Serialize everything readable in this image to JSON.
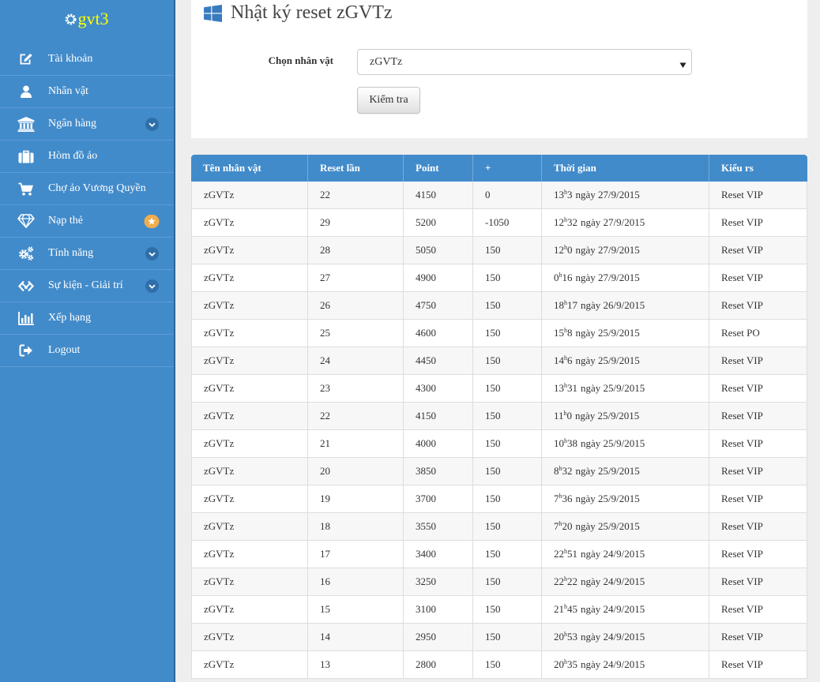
{
  "logo": {
    "text": "gvt3",
    "icon": "gear-icon"
  },
  "colors": {
    "sidebar": "#428bca",
    "logo_text": "#ffff00",
    "badge": "#f0ad4e",
    "table_header": "#428bca",
    "title_icon": "#3a7bbf"
  },
  "sidebar": {
    "items": [
      {
        "label": "Tài khoản",
        "icon": "edit-icon"
      },
      {
        "label": "Nhân vật",
        "icon": "user-icon"
      },
      {
        "label": "Ngân hàng",
        "icon": "bank-icon",
        "indicator": "chevron-circle-down-icon"
      },
      {
        "label": "Hòm đồ ảo",
        "icon": "briefcase-icon"
      },
      {
        "label": "Chợ ảo Vương Quyền",
        "icon": "shopping-cart-icon"
      },
      {
        "label": "Nạp thẻ",
        "icon": "diamond-icon",
        "indicator": "star-badge-icon"
      },
      {
        "label": "Tính năng",
        "icon": "cogs-icon",
        "indicator": "chevron-circle-down-icon"
      },
      {
        "label": "Sự kiện - Giải trí",
        "icon": "handshake-icon",
        "indicator": "chevron-circle-down-icon"
      },
      {
        "label": "Xếp hạng",
        "icon": "bar-chart-icon"
      },
      {
        "label": "Logout",
        "icon": "sign-out-icon"
      }
    ]
  },
  "page": {
    "title": "Nhật ký reset zGVTz",
    "icon": "windows-icon"
  },
  "form": {
    "character_label": "Chọn nhân vật",
    "selected_character": "zGVTz",
    "check_button": "Kiểm tra"
  },
  "table": {
    "columns": [
      "Tên nhân vật",
      "Reset lần",
      "Point",
      "+",
      "Thời gian",
      "Kiểu rs"
    ],
    "time_unit": "h",
    "rows": [
      {
        "name": "zGVTz",
        "reset": 22,
        "point": 4150,
        "delta": 0,
        "time": {
          "hour": "13",
          "minute": "3",
          "date": "ngày 27/9/2015"
        },
        "type": "Reset VIP"
      },
      {
        "name": "zGVTz",
        "reset": 29,
        "point": 5200,
        "delta": -1050,
        "time": {
          "hour": "12",
          "minute": "32",
          "date": "ngày 27/9/2015"
        },
        "type": "Reset VIP"
      },
      {
        "name": "zGVTz",
        "reset": 28,
        "point": 5050,
        "delta": 150,
        "time": {
          "hour": "12",
          "minute": "0",
          "date": "ngày 27/9/2015"
        },
        "type": "Reset VIP"
      },
      {
        "name": "zGVTz",
        "reset": 27,
        "point": 4900,
        "delta": 150,
        "time": {
          "hour": "0",
          "minute": "16",
          "date": "ngày 27/9/2015"
        },
        "type": "Reset VIP"
      },
      {
        "name": "zGVTz",
        "reset": 26,
        "point": 4750,
        "delta": 150,
        "time": {
          "hour": "18",
          "minute": "17",
          "date": "ngày 26/9/2015"
        },
        "type": "Reset VIP"
      },
      {
        "name": "zGVTz",
        "reset": 25,
        "point": 4600,
        "delta": 150,
        "time": {
          "hour": "15",
          "minute": "8",
          "date": "ngày 25/9/2015"
        },
        "type": "Reset PO"
      },
      {
        "name": "zGVTz",
        "reset": 24,
        "point": 4450,
        "delta": 150,
        "time": {
          "hour": "14",
          "minute": "6",
          "date": "ngày 25/9/2015"
        },
        "type": "Reset VIP"
      },
      {
        "name": "zGVTz",
        "reset": 23,
        "point": 4300,
        "delta": 150,
        "time": {
          "hour": "13",
          "minute": "31",
          "date": "ngày 25/9/2015"
        },
        "type": "Reset VIP"
      },
      {
        "name": "zGVTz",
        "reset": 22,
        "point": 4150,
        "delta": 150,
        "time": {
          "hour": "11",
          "minute": "0",
          "date": "ngày 25/9/2015"
        },
        "type": "Reset VIP"
      },
      {
        "name": "zGVTz",
        "reset": 21,
        "point": 4000,
        "delta": 150,
        "time": {
          "hour": "10",
          "minute": "38",
          "date": "ngày 25/9/2015"
        },
        "type": "Reset VIP"
      },
      {
        "name": "zGVTz",
        "reset": 20,
        "point": 3850,
        "delta": 150,
        "time": {
          "hour": "8",
          "minute": "32",
          "date": "ngày 25/9/2015"
        },
        "type": "Reset VIP"
      },
      {
        "name": "zGVTz",
        "reset": 19,
        "point": 3700,
        "delta": 150,
        "time": {
          "hour": "7",
          "minute": "36",
          "date": "ngày 25/9/2015"
        },
        "type": "Reset VIP"
      },
      {
        "name": "zGVTz",
        "reset": 18,
        "point": 3550,
        "delta": 150,
        "time": {
          "hour": "7",
          "minute": "20",
          "date": "ngày 25/9/2015"
        },
        "type": "Reset VIP"
      },
      {
        "name": "zGVTz",
        "reset": 17,
        "point": 3400,
        "delta": 150,
        "time": {
          "hour": "22",
          "minute": "51",
          "date": "ngày 24/9/2015"
        },
        "type": "Reset VIP"
      },
      {
        "name": "zGVTz",
        "reset": 16,
        "point": 3250,
        "delta": 150,
        "time": {
          "hour": "22",
          "minute": "22",
          "date": "ngày 24/9/2015"
        },
        "type": "Reset VIP"
      },
      {
        "name": "zGVTz",
        "reset": 15,
        "point": 3100,
        "delta": 150,
        "time": {
          "hour": "21",
          "minute": "45",
          "date": "ngày 24/9/2015"
        },
        "type": "Reset VIP"
      },
      {
        "name": "zGVTz",
        "reset": 14,
        "point": 2950,
        "delta": 150,
        "time": {
          "hour": "20",
          "minute": "53",
          "date": "ngày 24/9/2015"
        },
        "type": "Reset VIP"
      },
      {
        "name": "zGVTz",
        "reset": 13,
        "point": 2800,
        "delta": 150,
        "time": {
          "hour": "20",
          "minute": "35",
          "date": "ngày 24/9/2015"
        },
        "type": "Reset VIP"
      }
    ]
  }
}
